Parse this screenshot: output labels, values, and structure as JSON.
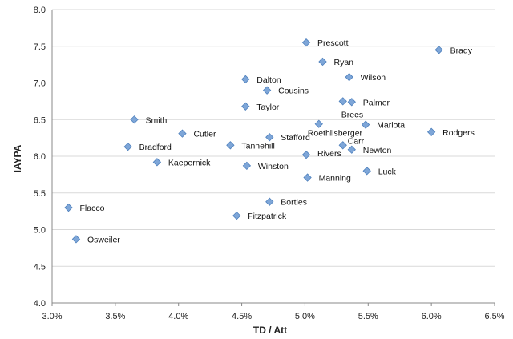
{
  "chart_data": {
    "type": "scatter",
    "title": "",
    "xlabel": "TD / Att",
    "ylabel": "IAYPA",
    "xlim": [
      3.0,
      6.5
    ],
    "ylim": [
      4.0,
      8.0
    ],
    "x_ticks": [
      "3.0%",
      "3.5%",
      "4.0%",
      "4.5%",
      "5.0%",
      "5.5%",
      "6.0%",
      "6.5%"
    ],
    "y_ticks": [
      "4.0",
      "4.5",
      "5.0",
      "5.5",
      "6.0",
      "6.5",
      "7.0",
      "7.5",
      "8.0"
    ],
    "grid": "horizontal",
    "marker_color": "#7ea6d8",
    "marker_edge_color": "#4f81bd",
    "points": [
      {
        "name": "Prescott",
        "x": 5.01,
        "y": 7.55
      },
      {
        "name": "Brady",
        "x": 6.06,
        "y": 7.45
      },
      {
        "name": "Ryan",
        "x": 5.14,
        "y": 7.29
      },
      {
        "name": "Wilson",
        "x": 5.35,
        "y": 7.08
      },
      {
        "name": "Dalton",
        "x": 4.53,
        "y": 7.05
      },
      {
        "name": "Cousins",
        "x": 4.7,
        "y": 6.9
      },
      {
        "name": "Palmer",
        "x": 5.37,
        "y": 6.74
      },
      {
        "name": "Brees",
        "x": 5.3,
        "y": 6.75
      },
      {
        "name": "Taylor",
        "x": 4.53,
        "y": 6.68
      },
      {
        "name": "Smith",
        "x": 3.65,
        "y": 6.5
      },
      {
        "name": "Mariota",
        "x": 5.48,
        "y": 6.43
      },
      {
        "name": "Roethlisberger",
        "x": 5.11,
        "y": 6.44
      },
      {
        "name": "Rodgers",
        "x": 6.0,
        "y": 6.33
      },
      {
        "name": "Cutler",
        "x": 4.03,
        "y": 6.31
      },
      {
        "name": "Stafford",
        "x": 4.72,
        "y": 6.26
      },
      {
        "name": "Carr",
        "x": 5.3,
        "y": 6.15
      },
      {
        "name": "Tannehill",
        "x": 4.41,
        "y": 6.15
      },
      {
        "name": "Bradford",
        "x": 3.6,
        "y": 6.13
      },
      {
        "name": "Newton",
        "x": 5.37,
        "y": 6.09
      },
      {
        "name": "Rivers",
        "x": 5.01,
        "y": 6.02
      },
      {
        "name": "Kaepernick",
        "x": 3.83,
        "y": 5.92
      },
      {
        "name": "Winston",
        "x": 4.54,
        "y": 5.87
      },
      {
        "name": "Luck",
        "x": 5.49,
        "y": 5.8
      },
      {
        "name": "Manning",
        "x": 5.02,
        "y": 5.71
      },
      {
        "name": "Bortles",
        "x": 4.72,
        "y": 5.38
      },
      {
        "name": "Flacco",
        "x": 3.13,
        "y": 5.3
      },
      {
        "name": "Fitzpatrick",
        "x": 4.46,
        "y": 5.19
      },
      {
        "name": "Osweiler",
        "x": 3.19,
        "y": 4.87
      }
    ]
  }
}
